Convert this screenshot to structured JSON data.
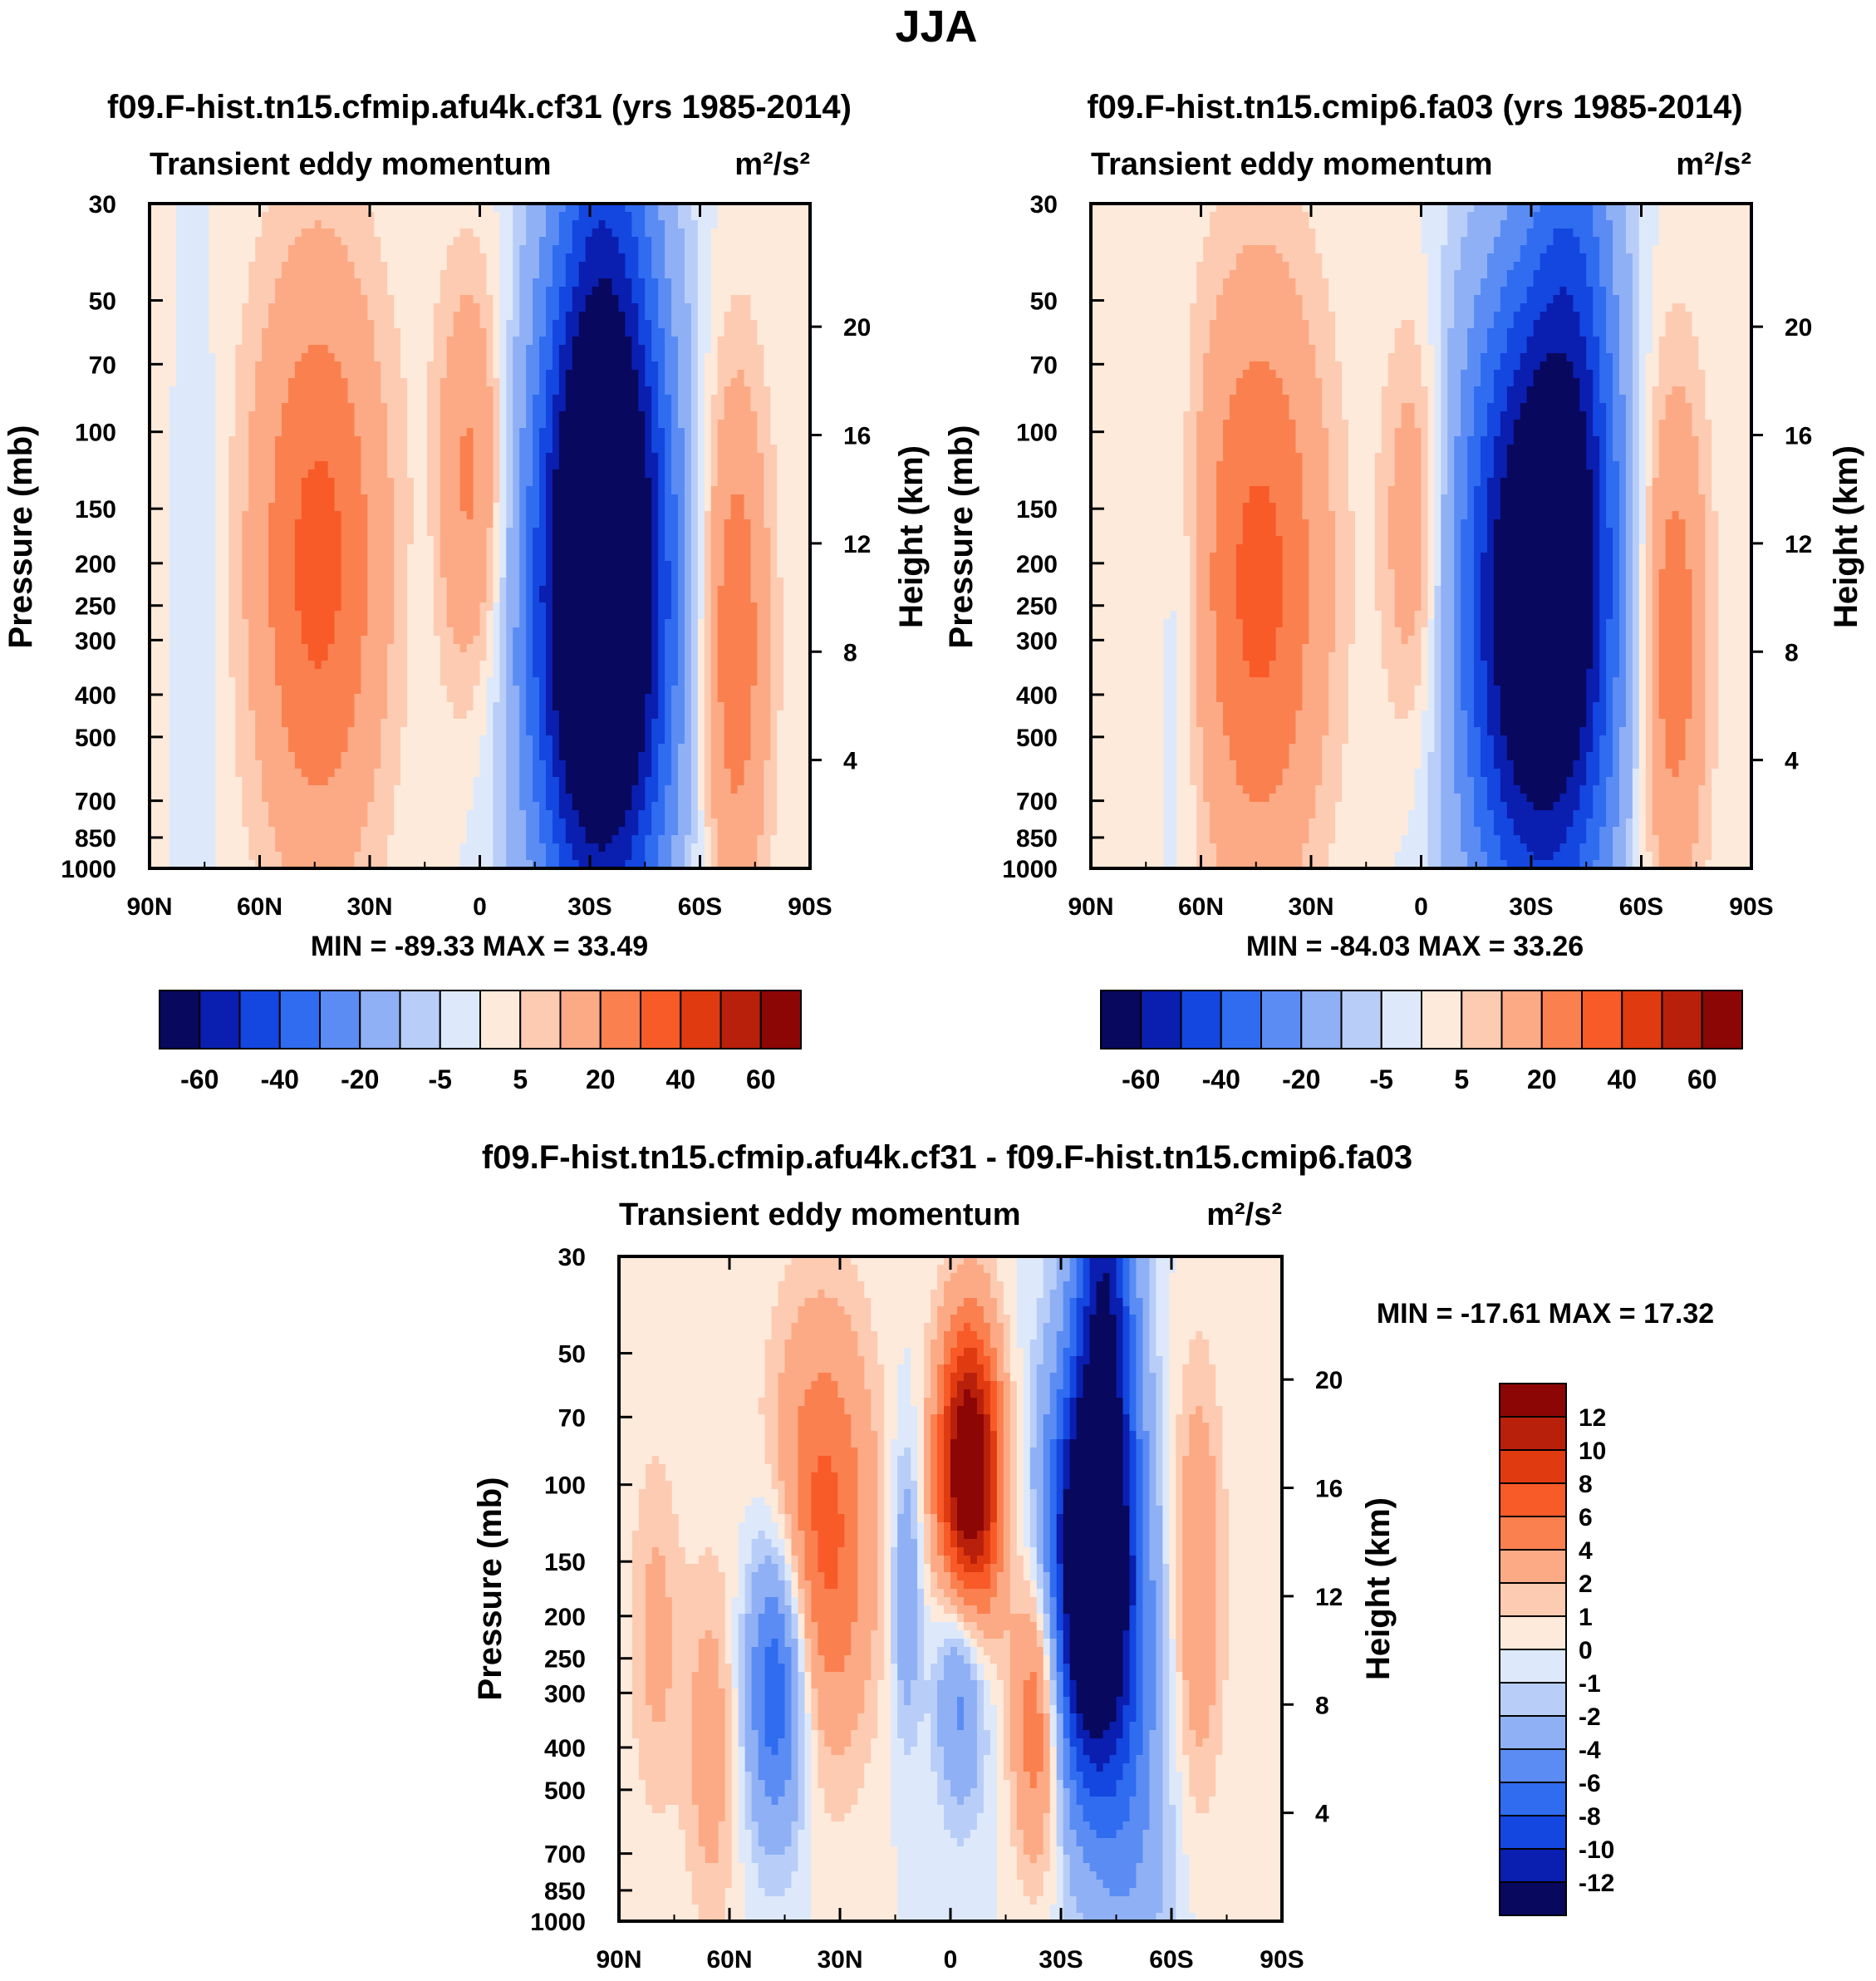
{
  "figure": {
    "season": "JJA",
    "palettes": {
      "base": [
        "#08085e",
        "#0a1eb0",
        "#1446e0",
        "#2f6cf0",
        "#5a8cf4",
        "#8fb0f4",
        "#b8cef8",
        "#dde9fb",
        "#fdeadb",
        "#fdcbb2",
        "#fcaa85",
        "#fa8050",
        "#f85a28",
        "#e03a10",
        "#b8200c",
        "#8c0606"
      ],
      "diff": [
        "#08085e",
        "#0a1eb0",
        "#1446e0",
        "#2f6cf0",
        "#5a8cf4",
        "#8fb0f4",
        "#b8cef8",
        "#dde9fb",
        "#fdeadb",
        "#fdcbb2",
        "#fcaa85",
        "#fa8050",
        "#f85a28",
        "#e03a10",
        "#b8200c",
        "#8c0606"
      ]
    }
  },
  "panels": [
    {
      "id": "panel-a",
      "title": "f09.F-hist.tn15.cfmip.afu4k.cf31 (yrs 1985-2014)",
      "subtitle": "Transient eddy momentum",
      "units": "m²/s²",
      "min_max": "MIN = -89.33  MAX =  33.49",
      "colorbar_labels": [
        "-60",
        "-40",
        "-20",
        "-5",
        "5",
        "20",
        "40",
        "60"
      ]
    },
    {
      "id": "panel-b",
      "title": "f09.F-hist.tn15.cmip6.fa03 (yrs 1985-2014)",
      "subtitle": "Transient eddy momentum",
      "units": "m²/s²",
      "min_max": "MIN = -84.03  MAX =  33.26",
      "colorbar_labels": [
        "-60",
        "-40",
        "-20",
        "-5",
        "5",
        "20",
        "40",
        "60"
      ]
    },
    {
      "id": "panel-diff",
      "title": "f09.F-hist.tn15.cfmip.afu4k.cf31 - f09.F-hist.tn15.cmip6.fa03",
      "subtitle": "Transient eddy momentum",
      "units": "m²/s²",
      "min_max": "MIN = -17.61  MAX =  17.32",
      "colorbar_labels": [
        "12",
        "10",
        "8",
        "6",
        "4",
        "2",
        "1",
        "0",
        "-1",
        "-2",
        "-4",
        "-6",
        "-8",
        "-10",
        "-12"
      ]
    }
  ],
  "chart_data": [
    {
      "type": "heatmap",
      "title": "f09.F-hist.tn15.cfmip.afu4k.cf31 (yrs 1985-2014)",
      "xlabel": "",
      "ylabel": "Pressure (mb)",
      "y2label": "Height (km)",
      "x_ticks": [
        "90N",
        "60N",
        "30N",
        "0",
        "30S",
        "60S",
        "90S"
      ],
      "x_range": [
        90,
        -90
      ],
      "y_ticks": [
        30,
        50,
        70,
        100,
        150,
        200,
        250,
        300,
        400,
        500,
        700,
        850,
        1000
      ],
      "y_scale": "log",
      "y_range": [
        30,
        1000
      ],
      "y2_ticks": [
        20,
        16,
        12,
        8,
        4
      ],
      "levels": [
        -70,
        -60,
        -50,
        -40,
        -30,
        -20,
        -10,
        -5,
        0,
        5,
        10,
        20,
        30,
        40,
        50,
        60
      ],
      "features": [
        {
          "lat": -33,
          "p": 250,
          "value": -89.33,
          "lat_halfwidth": 14,
          "logp_halfwidth": 0.55
        },
        {
          "lat": -34,
          "p": 30,
          "value": -25,
          "lat_halfwidth": 10,
          "logp_halfwidth": 0.9
        },
        {
          "lat": 44,
          "p": 200,
          "value": 33.49,
          "lat_halfwidth": 13,
          "logp_halfwidth": 0.5
        },
        {
          "lat": 2,
          "p": 130,
          "value": 24,
          "lat_halfwidth": 7,
          "logp_halfwidth": 0.35
        },
        {
          "lat": -69,
          "p": 300,
          "value": 30,
          "lat_halfwidth": 7,
          "logp_halfwidth": 0.45
        },
        {
          "lat": 75,
          "p": 250,
          "value": -4,
          "lat_halfwidth": 4,
          "logp_halfwidth": 0.5
        },
        {
          "lat": 15,
          "p": 200,
          "value": -3,
          "lat_halfwidth": 3,
          "logp_halfwidth": 0.3
        }
      ],
      "min": -89.33,
      "max": 33.49
    },
    {
      "type": "heatmap",
      "title": "f09.F-hist.tn15.cmip6.fa03 (yrs 1985-2014)",
      "xlabel": "",
      "ylabel": "Pressure (mb)",
      "y2label": "Height (km)",
      "x_ticks": [
        "90N",
        "60N",
        "30N",
        "0",
        "30S",
        "60S",
        "90S"
      ],
      "x_range": [
        90,
        -90
      ],
      "y_ticks": [
        30,
        50,
        70,
        100,
        150,
        200,
        250,
        300,
        400,
        500,
        700,
        850,
        1000
      ],
      "y_scale": "log",
      "y_range": [
        30,
        1000
      ],
      "y2_ticks": [
        20,
        16,
        12,
        8,
        4
      ],
      "levels": [
        -70,
        -60,
        -50,
        -40,
        -30,
        -20,
        -10,
        -5,
        0,
        5,
        10,
        20,
        30,
        40,
        50,
        60
      ],
      "features": [
        {
          "lat": -32,
          "p": 250,
          "value": -84.03,
          "lat_halfwidth": 15,
          "logp_halfwidth": 0.55
        },
        {
          "lat": -42,
          "p": 30,
          "value": -20,
          "lat_halfwidth": 8,
          "logp_halfwidth": 0.8
        },
        {
          "lat": 44,
          "p": 220,
          "value": 33.26,
          "lat_halfwidth": 13,
          "logp_halfwidth": 0.5
        },
        {
          "lat": 2,
          "p": 170,
          "value": 20,
          "lat_halfwidth": 6,
          "logp_halfwidth": 0.35
        },
        {
          "lat": -68,
          "p": 300,
          "value": 30,
          "lat_halfwidth": 7,
          "logp_halfwidth": 0.45
        },
        {
          "lat": 66,
          "p": 300,
          "value": -7,
          "lat_halfwidth": 4,
          "logp_halfwidth": 0.4
        }
      ],
      "min": -84.03,
      "max": 33.26
    },
    {
      "type": "heatmap",
      "title": "f09.F-hist.tn15.cfmip.afu4k.cf31 - f09.F-hist.tn15.cmip6.fa03",
      "xlabel": "",
      "ylabel": "Pressure (mb)",
      "y2label": "Height (km)",
      "x_ticks": [
        "90N",
        "60N",
        "30N",
        "0",
        "30S",
        "60S",
        "90S"
      ],
      "x_range": [
        90,
        -90
      ],
      "y_ticks": [
        30,
        50,
        70,
        100,
        150,
        200,
        250,
        300,
        400,
        500,
        700,
        850,
        1000
      ],
      "y_scale": "log",
      "y_range": [
        30,
        1000
      ],
      "y2_ticks": [
        20,
        16,
        12,
        8,
        4
      ],
      "levels": [
        -14,
        -12,
        -10,
        -8,
        -6,
        -4,
        -2,
        -1,
        0,
        1,
        2,
        4,
        6,
        8,
        10,
        12
      ],
      "features": [
        {
          "lat": -5,
          "p": 100,
          "value": 17.32,
          "lat_halfwidth": 6,
          "logp_halfwidth": 0.25
        },
        {
          "lat": -38,
          "p": 170,
          "value": -17.61,
          "lat_halfwidth": 9,
          "logp_halfwidth": 0.35
        },
        {
          "lat": -42,
          "p": 30,
          "value": -10,
          "lat_halfwidth": 6,
          "logp_halfwidth": 0.45
        },
        {
          "lat": 35,
          "p": 130,
          "value": 7,
          "lat_halfwidth": 10,
          "logp_halfwidth": 0.35
        },
        {
          "lat": 47,
          "p": 280,
          "value": -9,
          "lat_halfwidth": 6,
          "logp_halfwidth": 0.25
        },
        {
          "lat": -3,
          "p": 250,
          "value": -7,
          "lat_halfwidth": 5,
          "logp_halfwidth": 0.22
        },
        {
          "lat": -24,
          "p": 320,
          "value": 8,
          "lat_halfwidth": 5,
          "logp_halfwidth": 0.25
        },
        {
          "lat": 12,
          "p": 170,
          "value": -4,
          "lat_halfwidth": 3,
          "logp_halfwidth": 0.25
        },
        {
          "lat": -67,
          "p": 170,
          "value": 4,
          "lat_halfwidth": 5,
          "logp_halfwidth": 0.35
        },
        {
          "lat": 80,
          "p": 220,
          "value": 2.5,
          "lat_halfwidth": 5,
          "logp_halfwidth": 0.3
        },
        {
          "lat": 65,
          "p": 400,
          "value": 3,
          "lat_halfwidth": 5,
          "logp_halfwidth": 0.3
        },
        {
          "lat": -50,
          "p": 600,
          "value": -3,
          "lat_halfwidth": 8,
          "logp_halfwidth": 0.4
        }
      ],
      "min": -17.61,
      "max": 17.32
    }
  ]
}
